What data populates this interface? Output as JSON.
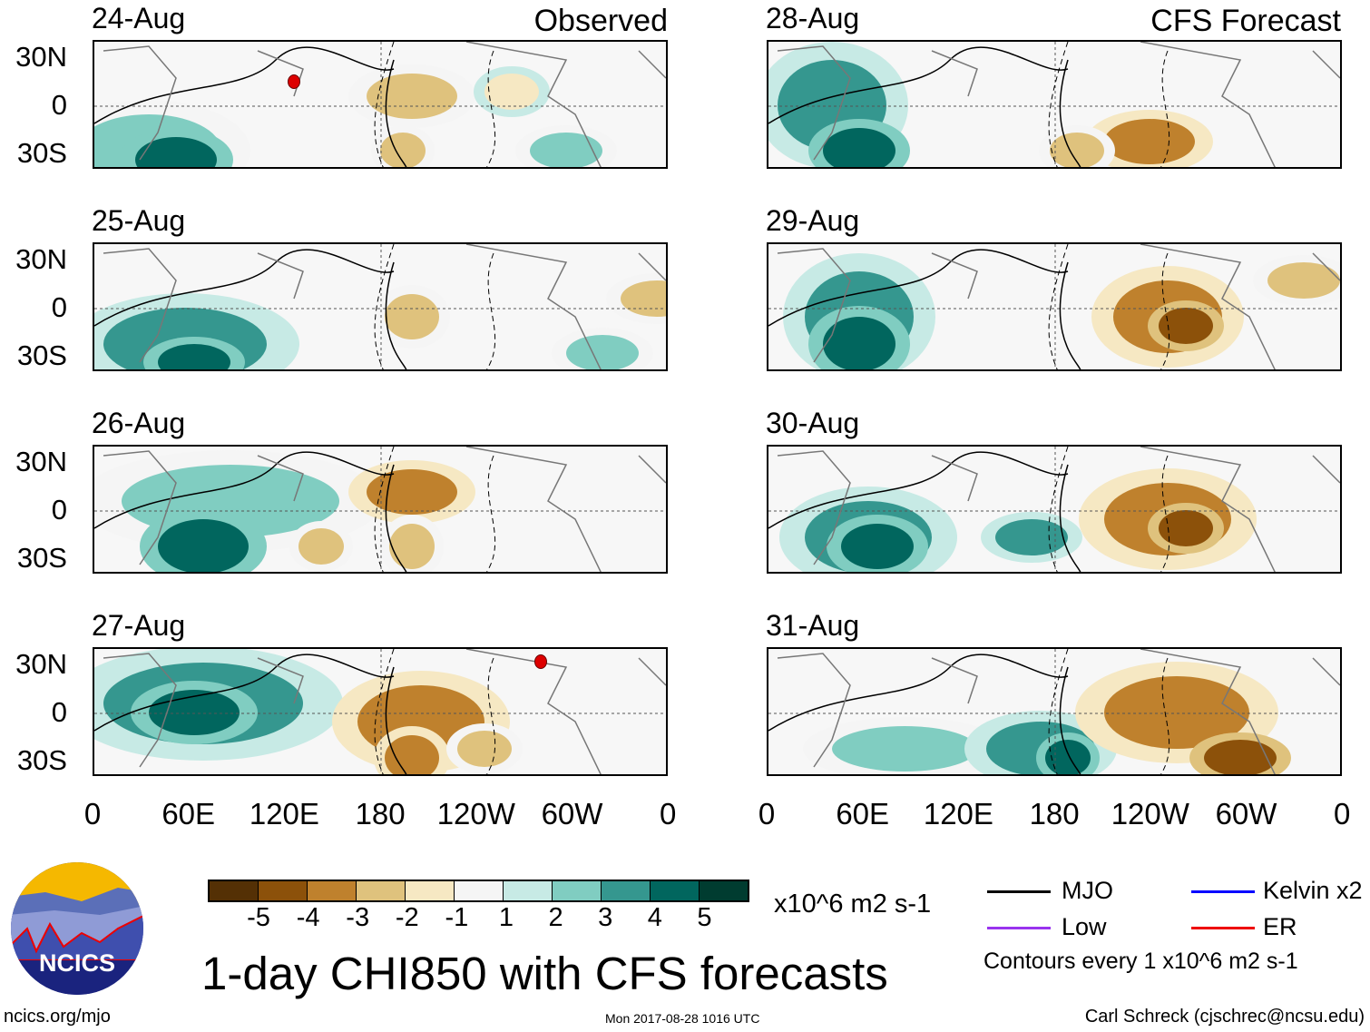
{
  "columns": [
    {
      "title": "Observed",
      "panels": [
        "24-Aug",
        "25-Aug",
        "26-Aug",
        "27-Aug"
      ]
    },
    {
      "title": "CFS Forecast",
      "panels": [
        "28-Aug",
        "29-Aug",
        "30-Aug",
        "31-Aug"
      ]
    }
  ],
  "lat_labels": [
    "30N",
    "0",
    "30S"
  ],
  "lon_labels": [
    "0",
    "60E",
    "120E",
    "180",
    "120W",
    "60W",
    "0"
  ],
  "colorbar": {
    "colors": [
      "#543005",
      "#8c510a",
      "#bf812d",
      "#dfc27d",
      "#f6e8c3",
      "#f5f5f5",
      "#c7eae5",
      "#80cdc1",
      "#35978f",
      "#01665e",
      "#003c30"
    ],
    "labels": [
      "-5",
      "-4",
      "-3",
      "-2",
      "-1",
      "1",
      "2",
      "3",
      "4",
      "5"
    ],
    "units": "x10^6 m2 s-1"
  },
  "title": "1-day CHI850 with CFS forecasts",
  "legend": {
    "items": [
      {
        "label": "MJO",
        "color": "#000000"
      },
      {
        "label": "Kelvin x2",
        "color": "#0000ff"
      },
      {
        "label": "Low",
        "color": "#9933ee"
      },
      {
        "label": "ER",
        "color": "#ee0000"
      }
    ],
    "note": "Contours every 1 x10^6 m2 s-1"
  },
  "logo_text": "NCICS",
  "footer": {
    "left": "ncics.org/mjo",
    "center": "Mon 2017-08-28 1016 UTC",
    "right": "Carl Schreck (cjschrec@ncsu.edu)"
  }
}
